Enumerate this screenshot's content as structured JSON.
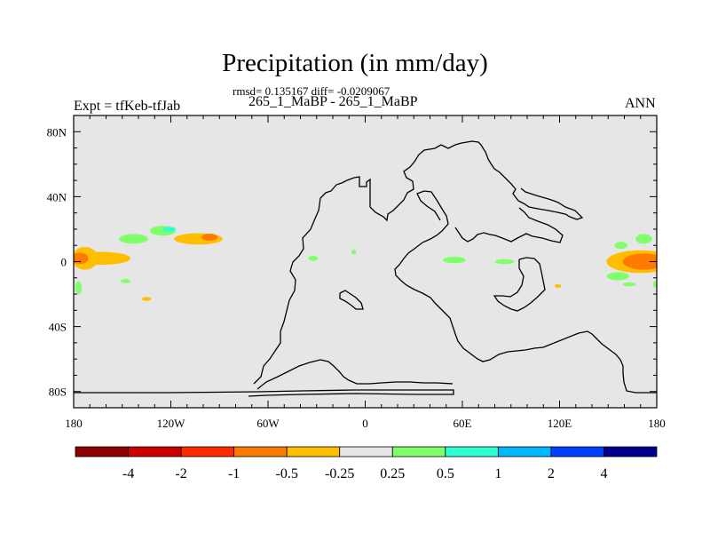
{
  "chart_data": {
    "type": "heatmap",
    "title": "Precipitation (in mm/day)",
    "stats_line": "rmsd= 0.135167 diff= -0.0209067",
    "subtitle": "265_1_MaBP - 265_1_MaBP",
    "left_label": "Expt = tfKeb-tfJab",
    "right_label": "ANN",
    "xlim": [
      -180,
      180
    ],
    "ylim": [
      -90,
      90
    ],
    "x_ticks": [
      {
        "value": -180,
        "label": "180"
      },
      {
        "value": -120,
        "label": "120W"
      },
      {
        "value": -60,
        "label": "60W"
      },
      {
        "value": 0,
        "label": "0"
      },
      {
        "value": 60,
        "label": "60E"
      },
      {
        "value": 120,
        "label": "120E"
      },
      {
        "value": 180,
        "label": "180"
      }
    ],
    "y_ticks": [
      {
        "value": 80,
        "label": "80N"
      },
      {
        "value": 40,
        "label": "40N"
      },
      {
        "value": 0,
        "label": "0"
      },
      {
        "value": -40,
        "label": "40S"
      },
      {
        "value": -80,
        "label": "80S"
      }
    ],
    "background_color": "#e6e6e6",
    "colorbar": {
      "colors": [
        "#8b0000",
        "#cd0000",
        "#ff2a00",
        "#ff7a00",
        "#ffbf00",
        "#e6e6e6",
        "#7fff6a",
        "#2effd2",
        "#00b8ff",
        "#0040ff",
        "#000090"
      ],
      "labels": [
        "-4",
        "-2",
        "-1",
        "-0.5",
        "-0.25",
        "0.25",
        "0.5",
        "1",
        "2",
        "4"
      ]
    },
    "anomalies": [
      {
        "lon": -173,
        "lat": 2,
        "rx": 8,
        "ry": 7,
        "color": "#ffbf00"
      },
      {
        "lon": -163,
        "lat": 2,
        "rx": 18,
        "ry": 4,
        "color": "#ffbf00"
      },
      {
        "lon": -176,
        "lat": 2,
        "rx": 5,
        "ry": 3.5,
        "color": "#ff7a00"
      },
      {
        "lon": -143,
        "lat": 14,
        "rx": 9,
        "ry": 3,
        "color": "#7fff6a"
      },
      {
        "lon": -125,
        "lat": 19,
        "rx": 8,
        "ry": 3,
        "color": "#7fff6a"
      },
      {
        "lon": -121,
        "lat": 20,
        "rx": 4,
        "ry": 1.5,
        "color": "#2effd2"
      },
      {
        "lon": -103,
        "lat": 14,
        "rx": 15,
        "ry": 3.5,
        "color": "#ffbf00"
      },
      {
        "lon": -96,
        "lat": 15,
        "rx": 5,
        "ry": 2.2,
        "color": "#ff7a00"
      },
      {
        "lon": -177,
        "lat": -16,
        "rx": 2,
        "ry": 4,
        "color": "#7fff6a"
      },
      {
        "lon": -148,
        "lat": -12,
        "rx": 3,
        "ry": 1.2,
        "color": "#7fff6a"
      },
      {
        "lon": -135,
        "lat": -23,
        "rx": 3,
        "ry": 1.2,
        "color": "#ffbf00"
      },
      {
        "lon": -32,
        "lat": 2,
        "rx": 3,
        "ry": 1.5,
        "color": "#7fff6a"
      },
      {
        "lon": -7,
        "lat": 6,
        "rx": 1.5,
        "ry": 1.5,
        "color": "#7fff6a"
      },
      {
        "lon": 55,
        "lat": 1,
        "rx": 7,
        "ry": 2,
        "color": "#7fff6a"
      },
      {
        "lon": 86,
        "lat": 0,
        "rx": 6,
        "ry": 1.5,
        "color": "#7fff6a"
      },
      {
        "lon": 158,
        "lat": 10,
        "rx": 4,
        "ry": 2.2,
        "color": "#7fff6a"
      },
      {
        "lon": 170,
        "lat": 0,
        "rx": 21,
        "ry": 7,
        "color": "#ffbf00"
      },
      {
        "lon": 172,
        "lat": 0,
        "rx": 13,
        "ry": 5,
        "color": "#ff7a00"
      },
      {
        "lon": 156,
        "lat": -9,
        "rx": 7,
        "ry": 2.5,
        "color": "#7fff6a"
      },
      {
        "lon": 172,
        "lat": 14,
        "rx": 5,
        "ry": 3,
        "color": "#7fff6a"
      },
      {
        "lon": 163,
        "lat": -14,
        "rx": 4,
        "ry": 1.2,
        "color": "#7fff6a"
      },
      {
        "lon": 179,
        "lat": -14,
        "rx": 1.5,
        "ry": 2,
        "color": "#7fff6a"
      },
      {
        "lon": 119,
        "lat": -15,
        "rx": 2,
        "ry": 1.2,
        "color": "#ffbf00"
      }
    ]
  }
}
